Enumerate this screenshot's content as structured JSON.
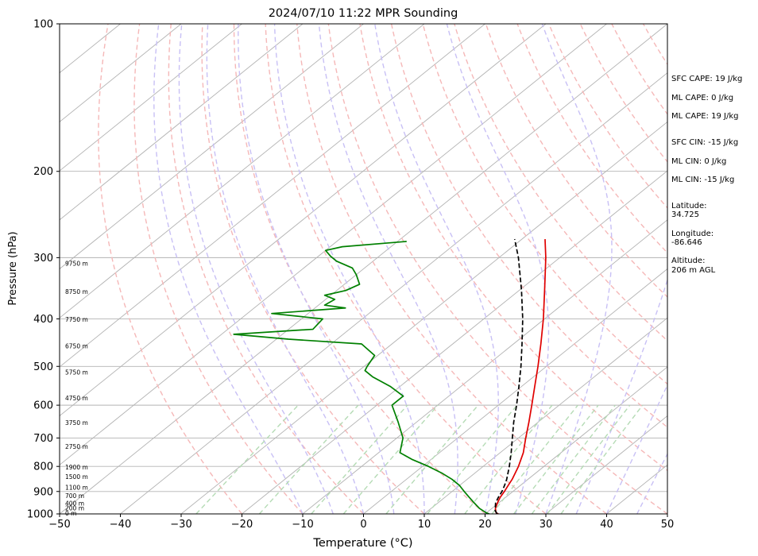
{
  "chart_data": {
    "type": "line",
    "title": "2024/07/10 11:22 MPR Sounding",
    "xlabel": "Temperature (°C)",
    "ylabel": "Pressure (hPa)",
    "xlim": [
      -50,
      50
    ],
    "ylim": [
      1000,
      100
    ],
    "y_scale": "log",
    "skew": true,
    "grid": true,
    "x_ticks": [
      -50,
      -40,
      -30,
      -20,
      -10,
      0,
      10,
      20,
      30,
      40,
      50
    ],
    "x_tick_labels": [
      "−50",
      "−40",
      "−30",
      "−20",
      "−10",
      "0",
      "10",
      "20",
      "30",
      "40",
      "50"
    ],
    "y_ticks": [
      1000,
      900,
      800,
      700,
      600,
      500,
      400,
      300,
      200,
      100
    ],
    "y_tick_labels": [
      "1000",
      "900",
      "800",
      "700",
      "600",
      "500",
      "400",
      "300",
      "200",
      "100"
    ],
    "series": [
      {
        "color": "#e00000",
        "style": "solid",
        "p": [
          1000,
          995,
          975,
          950,
          925,
          900,
          875,
          850,
          800,
          750,
          700,
          650,
          600,
          550,
          500,
          450,
          400,
          350,
          300,
          275
        ],
        "t": [
          22.2,
          21.6,
          20.6,
          19.8,
          19.1,
          18.6,
          18.0,
          17.4,
          15.8,
          13.8,
          11.2,
          8.5,
          5.5,
          2.2,
          -1.4,
          -5.5,
          -10.2,
          -15.8,
          -22.3,
          -26.2
        ]
      },
      {
        "color": "#008000",
        "style": "solid",
        "p": [
          1000,
          995,
          985,
          975,
          950,
          925,
          900,
          875,
          850,
          825,
          800,
          775,
          750,
          700,
          650,
          600,
          575,
          550,
          525,
          510,
          500,
          475,
          450,
          440,
          430,
          420,
          400,
          390,
          380,
          375,
          365,
          358,
          350,
          340,
          325,
          315,
          305,
          298,
          290,
          285,
          278
        ],
        "t": [
          20.7,
          20.0,
          19.0,
          18.0,
          16.0,
          14.0,
          12.0,
          10.0,
          7.5,
          4.5,
          1.0,
          -3.0,
          -6.5,
          -9.0,
          -13.0,
          -17.5,
          -17.5,
          -21.5,
          -26.5,
          -29.0,
          -29.5,
          -30.5,
          -35.0,
          -48.0,
          -58.0,
          -46.0,
          -46.5,
          -56.0,
          -45.0,
          -49.0,
          -48.5,
          -51.0,
          -48.5,
          -47.5,
          -50.0,
          -52.0,
          -56.0,
          -58.0,
          -60.0,
          -58.0,
          -48.5
        ]
      },
      {
        "color": "#000000",
        "style": "dashed",
        "p": [
          1000,
          985,
          950,
          925,
          900,
          875,
          850,
          800,
          750,
          700,
          650,
          600,
          550,
          500,
          450,
          400,
          350,
          300,
          275
        ],
        "t": [
          22.0,
          21.0,
          19.5,
          18.8,
          18.2,
          17.4,
          16.5,
          14.3,
          11.8,
          9.0,
          6.0,
          3.0,
          -0.4,
          -4.2,
          -8.6,
          -13.6,
          -19.6,
          -26.8,
          -31.2
        ]
      }
    ],
    "height_labels": [
      {
        "p": 1000,
        "text": "0 m"
      },
      {
        "p": 976,
        "text": "200 m"
      },
      {
        "p": 955,
        "text": "400 m"
      },
      {
        "p": 922,
        "text": "700 m"
      },
      {
        "p": 885,
        "text": "1100 m"
      },
      {
        "p": 843,
        "text": "1500 m"
      },
      {
        "p": 806,
        "text": "1900 m"
      },
      {
        "p": 731,
        "text": "2750 m"
      },
      {
        "p": 654,
        "text": "3750 m"
      },
      {
        "p": 582,
        "text": "4750 m"
      },
      {
        "p": 516,
        "text": "5750 m"
      },
      {
        "p": 456,
        "text": "6750 m"
      },
      {
        "p": 402,
        "text": "7750 m"
      },
      {
        "p": 353,
        "text": "8750 m"
      },
      {
        "p": 309,
        "text": "9750 m"
      }
    ],
    "annotations": [
      "SFC CAPE: 19 J/kg",
      "ML CAPE: 0 J/kg",
      "ML CAPE: 19 J/kg",
      "SFC CIN: -15 J/kg",
      "ML CIN: 0 J/kg",
      "ML CIN: -15 J/kg",
      "Latitude:",
      "34.725",
      "Longitude:",
      "-86.646",
      "Altitude:",
      "206 m AGL"
    ],
    "colors": {
      "isotherm": "#b3b3b3",
      "dry_adiabat": "#f5b8b8",
      "moist_adiabat": "#c8c0f5",
      "mixing_ratio": "#b5dbb5"
    }
  }
}
